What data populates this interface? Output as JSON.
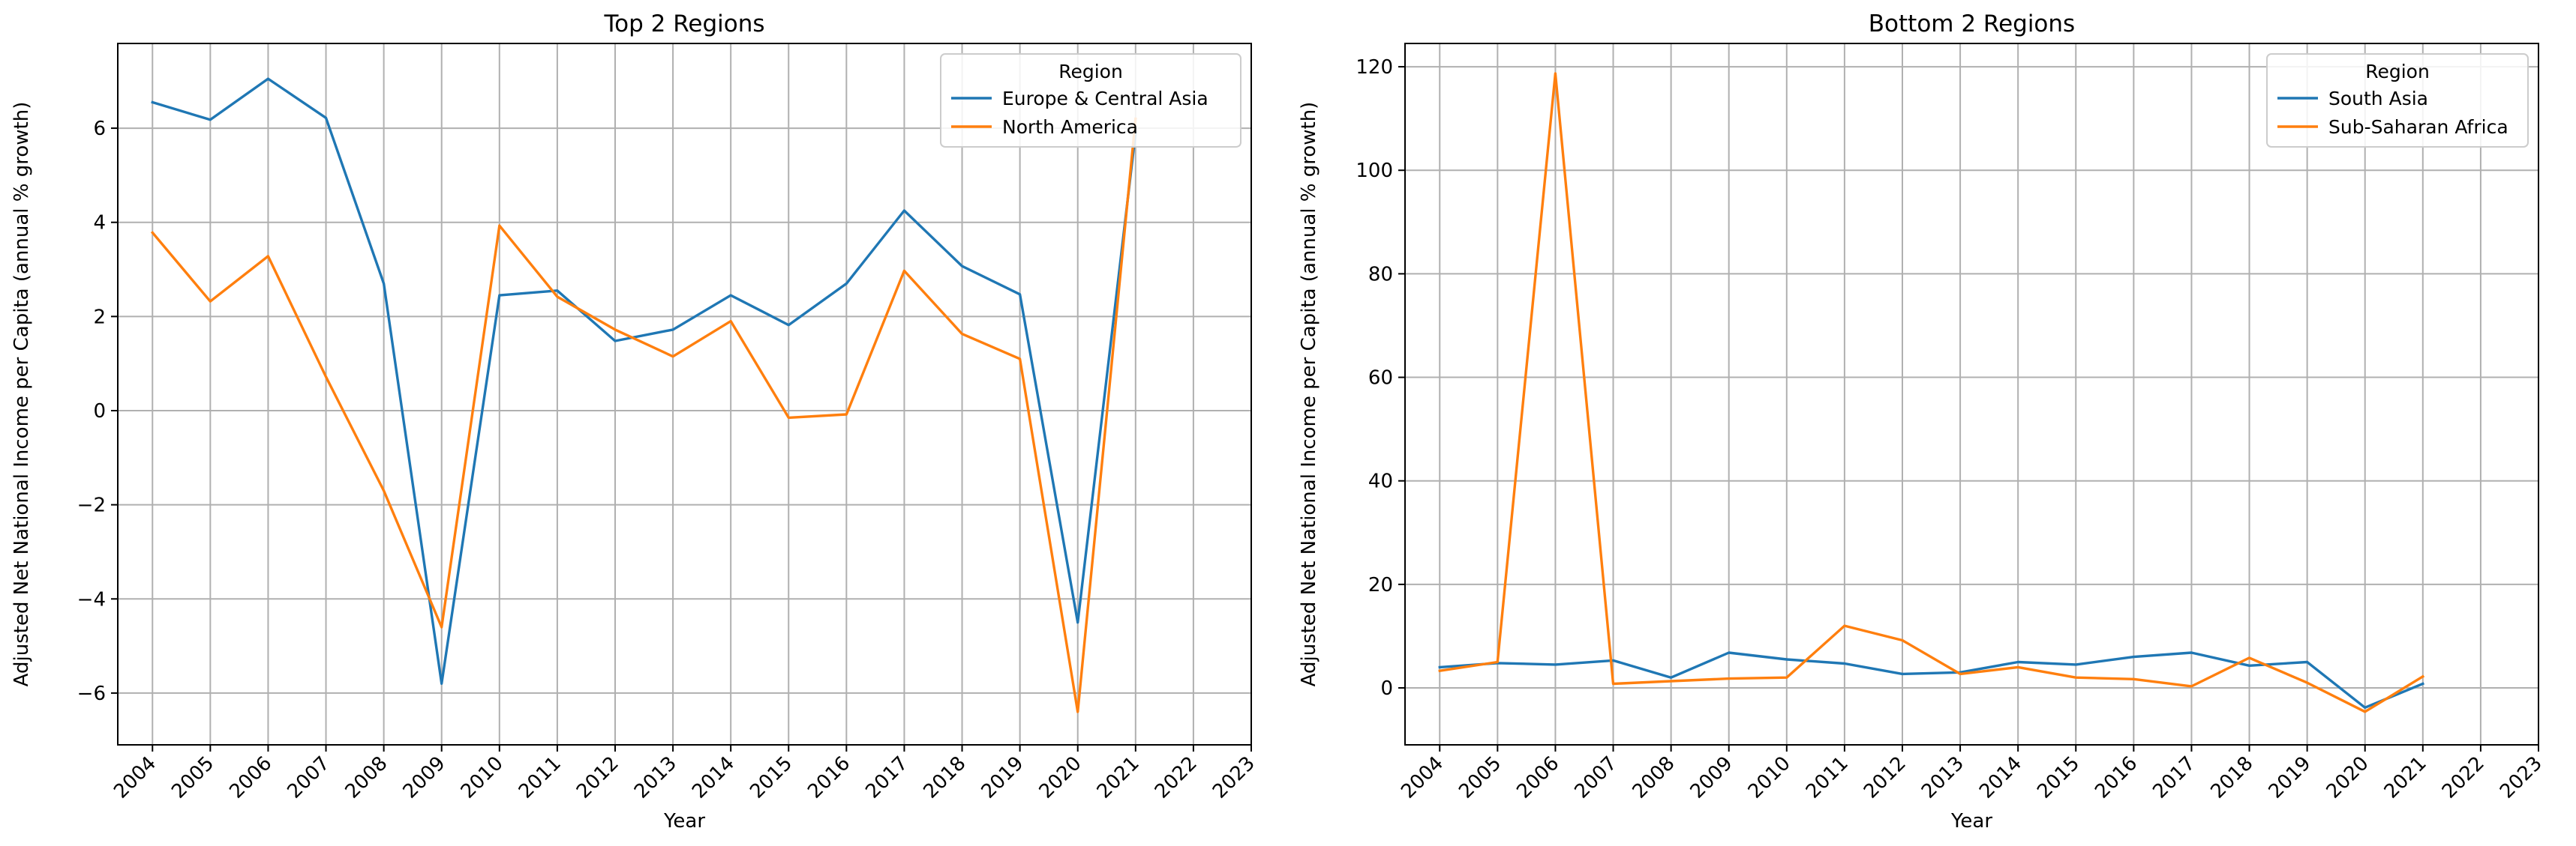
{
  "chart_data": [
    {
      "type": "line",
      "title": "Top 2 Regions",
      "xlabel": "Year",
      "ylabel": "Adjusted Net National Income per Capita (annual % growth)",
      "xlim": [
        2003.4,
        2023
      ],
      "ylim": [
        -7.1,
        7.8
      ],
      "xticks": [
        "2004",
        "2005",
        "2006",
        "2007",
        "2008",
        "2009",
        "2010",
        "2011",
        "2012",
        "2013",
        "2014",
        "2015",
        "2016",
        "2017",
        "2018",
        "2019",
        "2020",
        "2021",
        "2022",
        "2023"
      ],
      "yticks": [
        -6,
        -4,
        -2,
        0,
        2,
        4,
        6
      ],
      "grid": true,
      "legend": {
        "title": "Region",
        "placement": "upper right"
      },
      "series": [
        {
          "name": "Europe & Central Asia",
          "color": "#1f77b4",
          "x": [
            2004,
            2005,
            2006,
            2007,
            2008,
            2009,
            2010,
            2011,
            2012,
            2013,
            2014,
            2015,
            2016,
            2017,
            2018,
            2019,
            2020,
            2021
          ],
          "values": [
            6.55,
            6.18,
            7.05,
            6.22,
            2.7,
            -5.8,
            2.45,
            2.55,
            1.48,
            1.72,
            2.45,
            1.82,
            2.7,
            4.25,
            3.07,
            2.47,
            -4.5,
            5.9
          ]
        },
        {
          "name": "North America",
          "color": "#ff7f0e",
          "x": [
            2004,
            2005,
            2006,
            2007,
            2008,
            2009,
            2010,
            2011,
            2012,
            2013,
            2014,
            2015,
            2016,
            2017,
            2018,
            2019,
            2020,
            2021
          ],
          "values": [
            3.78,
            2.32,
            3.28,
            0.72,
            -1.7,
            -4.6,
            3.93,
            2.42,
            1.72,
            1.15,
            1.9,
            -0.15,
            -0.08,
            2.97,
            1.63,
            1.1,
            -6.4,
            6.2
          ]
        }
      ]
    },
    {
      "type": "line",
      "title": "Bottom 2 Regions",
      "xlabel": "Year",
      "ylabel": "Adjusted Net National Income per Capita (annual % growth)",
      "xlim": [
        2003.4,
        2023
      ],
      "ylim": [
        -11,
        124.5
      ],
      "xticks": [
        "2004",
        "2005",
        "2006",
        "2007",
        "2008",
        "2009",
        "2010",
        "2011",
        "2012",
        "2013",
        "2014",
        "2015",
        "2016",
        "2017",
        "2018",
        "2019",
        "2020",
        "2021",
        "2022",
        "2023"
      ],
      "yticks": [
        0,
        20,
        40,
        60,
        80,
        100,
        120
      ],
      "grid": true,
      "legend": {
        "title": "Region",
        "placement": "upper right"
      },
      "series": [
        {
          "name": "South Asia",
          "color": "#1f77b4",
          "x": [
            2004,
            2005,
            2006,
            2007,
            2008,
            2009,
            2010,
            2011,
            2012,
            2013,
            2014,
            2015,
            2016,
            2017,
            2018,
            2019,
            2020,
            2021
          ],
          "values": [
            4.0,
            4.8,
            4.5,
            5.3,
            2.0,
            6.8,
            5.5,
            4.7,
            2.7,
            3.0,
            5.0,
            4.5,
            6.0,
            6.8,
            4.3,
            5.0,
            -3.8,
            0.8
          ]
        },
        {
          "name": "Sub-Saharan Africa",
          "color": "#ff7f0e",
          "x": [
            2004,
            2005,
            2006,
            2007,
            2008,
            2009,
            2010,
            2011,
            2012,
            2013,
            2014,
            2015,
            2016,
            2017,
            2018,
            2019,
            2020,
            2021
          ],
          "values": [
            3.3,
            5.0,
            118.7,
            0.8,
            1.3,
            1.8,
            2.0,
            12.0,
            9.2,
            2.7,
            4.0,
            2.0,
            1.7,
            0.3,
            5.8,
            1.0,
            -4.6,
            2.2
          ]
        }
      ]
    }
  ]
}
